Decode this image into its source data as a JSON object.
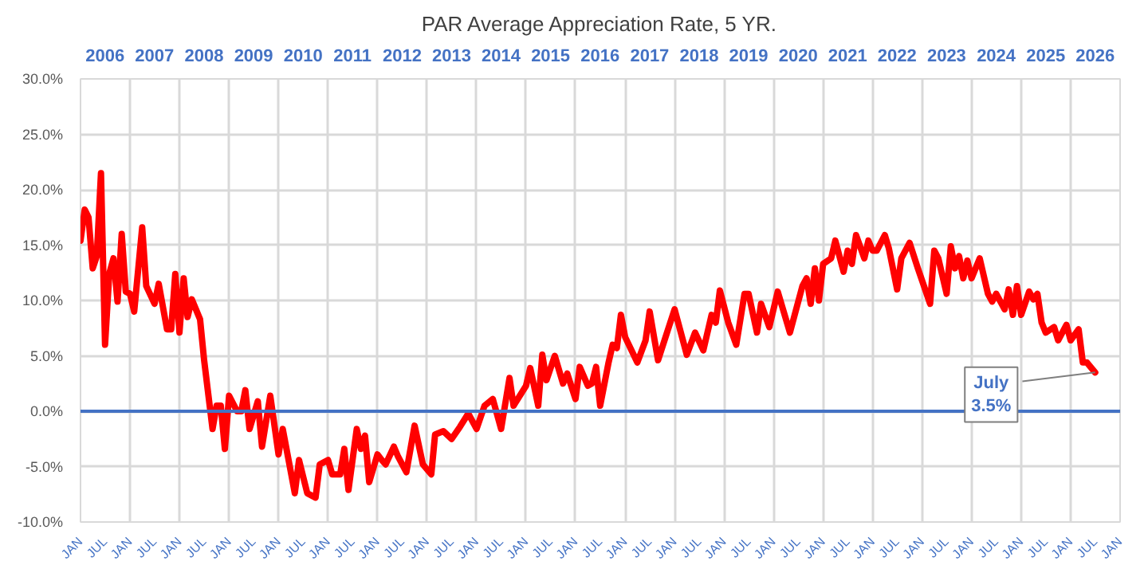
{
  "chart_data": {
    "type": "line",
    "title": "PAR Average Appreciation Rate, 5 YR.",
    "x": [
      "2006-01",
      "2006-02",
      "2006-03",
      "2006-04",
      "2006-05",
      "2006-06",
      "2006-07",
      "2006-08",
      "2006-09",
      "2006-10",
      "2006-11",
      "2006-12",
      "2007-01",
      "2007-02",
      "2007-04",
      "2007-05",
      "2007-07",
      "2007-08",
      "2007-10",
      "2007-11",
      "2007-12",
      "2008-01",
      "2008-02",
      "2008-03",
      "2008-04",
      "2008-06",
      "2008-07",
      "2008-09",
      "2008-10",
      "2008-11",
      "2008-12",
      "2009-01",
      "2009-03",
      "2009-04",
      "2009-05",
      "2009-06",
      "2009-08",
      "2009-09",
      "2009-11",
      "2010-01",
      "2010-02",
      "2010-05",
      "2010-06",
      "2010-08",
      "2010-10",
      "2010-11",
      "2011-01",
      "2011-02",
      "2011-04",
      "2011-05",
      "2011-06",
      "2011-08",
      "2011-09",
      "2011-10",
      "2011-11",
      "2012-01",
      "2012-02",
      "2012-03",
      "2012-05",
      "2012-06",
      "2012-08",
      "2012-10",
      "2012-12",
      "2013-02",
      "2013-03",
      "2013-05",
      "2013-07",
      "2013-09",
      "2013-11",
      "2014-01",
      "2014-03",
      "2014-05",
      "2014-07",
      "2014-09",
      "2014-10",
      "2015-01",
      "2015-02",
      "2015-04",
      "2015-05",
      "2015-06",
      "2015-08",
      "2015-10",
      "2015-11",
      "2016-01",
      "2016-02",
      "2016-04",
      "2016-05",
      "2016-06",
      "2016-07",
      "2016-09",
      "2016-10",
      "2016-11",
      "2016-12",
      "2017-01",
      "2017-04",
      "2017-06",
      "2017-07",
      "2017-09",
      "2017-11",
      "2018-01",
      "2018-04",
      "2018-06",
      "2018-08",
      "2018-10",
      "2018-11",
      "2018-12",
      "2019-02",
      "2019-04",
      "2019-06",
      "2019-07",
      "2019-09",
      "2019-10",
      "2019-12",
      "2020-02",
      "2020-05",
      "2020-08",
      "2020-09",
      "2020-10",
      "2020-11",
      "2020-12",
      "2021-01",
      "2021-03",
      "2021-04",
      "2021-06",
      "2021-07",
      "2021-08",
      "2021-09",
      "2021-11",
      "2021-12",
      "2022-01",
      "2022-02",
      "2022-04",
      "2022-05",
      "2022-07",
      "2022-08",
      "2022-10",
      "2022-12",
      "2023-03",
      "2023-04",
      "2023-05",
      "2023-07",
      "2023-08",
      "2023-09",
      "2023-10",
      "2023-11",
      "2023-12",
      "2024-01",
      "2024-03",
      "2024-05",
      "2024-06",
      "2024-07",
      "2024-09",
      "2024-10",
      "2024-11",
      "2024-12",
      "2025-01",
      "2025-03",
      "2025-04",
      "2025-05",
      "2025-06",
      "2025-07",
      "2025-09",
      "2025-10",
      "2025-12",
      "2026-01",
      "2026-03",
      "2026-04",
      "2026-05",
      "2026-07"
    ],
    "series": [
      {
        "color": "#ff0000",
        "values": [
          15.4,
          18.2,
          17.5,
          12.9,
          14.0,
          21.5,
          6.0,
          12.4,
          13.8,
          9.9,
          16.0,
          10.8,
          10.6,
          9.0,
          16.6,
          11.3,
          9.7,
          11.5,
          7.4,
          7.4,
          12.4,
          7.1,
          12.0,
          8.5,
          10.1,
          8.3,
          4.6,
          -1.6,
          0.5,
          0.5,
          -3.4,
          1.4,
          0.0,
          0.0,
          1.9,
          -1.6,
          0.9,
          -3.2,
          1.4,
          -3.9,
          -1.6,
          -7.4,
          -4.4,
          -7.4,
          -7.8,
          -4.8,
          -4.4,
          -5.7,
          -5.7,
          -3.4,
          -7.1,
          -1.6,
          -3.4,
          -2.2,
          -6.4,
          -3.9,
          -4.4,
          -4.8,
          -3.2,
          -4.1,
          -5.5,
          -1.3,
          -4.8,
          -5.7,
          -2.1,
          -1.8,
          -2.5,
          -1.4,
          -0.2,
          -1.6,
          0.5,
          1.1,
          -1.6,
          3.0,
          0.5,
          2.3,
          3.9,
          0.5,
          5.1,
          2.8,
          5.0,
          2.5,
          3.4,
          1.1,
          4.0,
          2.3,
          2.5,
          4.0,
          0.5,
          4.4,
          6.0,
          5.7,
          8.7,
          6.7,
          4.4,
          6.4,
          9.0,
          4.6,
          6.9,
          9.2,
          5.1,
          7.1,
          5.5,
          8.7,
          8.0,
          10.9,
          8.0,
          6.0,
          10.6,
          10.6,
          7.1,
          9.7,
          7.6,
          10.8,
          7.1,
          11.3,
          12.0,
          9.7,
          12.9,
          10.0,
          13.3,
          13.8,
          15.4,
          12.6,
          14.5,
          13.3,
          15.9,
          13.8,
          15.4,
          14.5,
          14.5,
          15.9,
          14.7,
          11.0,
          13.8,
          15.2,
          12.9,
          9.7,
          14.5,
          13.8,
          10.6,
          14.9,
          12.9,
          14.0,
          12.0,
          13.6,
          12.0,
          13.8,
          10.6,
          9.9,
          10.6,
          9.2,
          11.0,
          8.7,
          11.3,
          8.7,
          10.8,
          10.1,
          10.6,
          8.0,
          7.1,
          7.6,
          6.4,
          7.8,
          6.4,
          7.4,
          4.4,
          4.4,
          3.5
        ]
      }
    ],
    "xlim": [
      "2006-01",
      "2027-01"
    ],
    "xticks": [
      {
        "value": "2006-01",
        "label": "JAN"
      },
      {
        "value": "2006-07",
        "label": "JUL"
      },
      {
        "value": "2007-01",
        "label": "JAN"
      },
      {
        "value": "2007-07",
        "label": "JUL"
      },
      {
        "value": "2008-01",
        "label": "JAN"
      },
      {
        "value": "2008-07",
        "label": "JUL"
      },
      {
        "value": "2009-01",
        "label": "JAN"
      },
      {
        "value": "2009-07",
        "label": "JUL"
      },
      {
        "value": "2010-01",
        "label": "JAN"
      },
      {
        "value": "2010-07",
        "label": "JUL"
      },
      {
        "value": "2011-01",
        "label": "JAN"
      },
      {
        "value": "2011-07",
        "label": "JUL"
      },
      {
        "value": "2012-01",
        "label": "JAN"
      },
      {
        "value": "2012-07",
        "label": "JUL"
      },
      {
        "value": "2013-01",
        "label": "JAN"
      },
      {
        "value": "2013-07",
        "label": "JUL"
      },
      {
        "value": "2014-01",
        "label": "JAN"
      },
      {
        "value": "2014-07",
        "label": "JUL"
      },
      {
        "value": "2015-01",
        "label": "JAN"
      },
      {
        "value": "2015-07",
        "label": "JUL"
      },
      {
        "value": "2016-01",
        "label": "JAN"
      },
      {
        "value": "2016-07",
        "label": "JUL"
      },
      {
        "value": "2017-01",
        "label": "JAN"
      },
      {
        "value": "2017-07",
        "label": "JUL"
      },
      {
        "value": "2018-01",
        "label": "JAN"
      },
      {
        "value": "2018-07",
        "label": "JUL"
      },
      {
        "value": "2019-01",
        "label": "JAN"
      },
      {
        "value": "2019-07",
        "label": "JUL"
      },
      {
        "value": "2020-01",
        "label": "JAN"
      },
      {
        "value": "2020-07",
        "label": "JUL"
      },
      {
        "value": "2021-01",
        "label": "JAN"
      },
      {
        "value": "2021-07",
        "label": "JUL"
      },
      {
        "value": "2022-01",
        "label": "JAN"
      },
      {
        "value": "2022-07",
        "label": "JUL"
      },
      {
        "value": "2023-01",
        "label": "JAN"
      },
      {
        "value": "2023-07",
        "label": "JUL"
      },
      {
        "value": "2024-01",
        "label": "JAN"
      },
      {
        "value": "2024-07",
        "label": "JUL"
      },
      {
        "value": "2025-01",
        "label": "JAN"
      },
      {
        "value": "2025-07",
        "label": "JUL"
      },
      {
        "value": "2026-01",
        "label": "JAN"
      },
      {
        "value": "2026-07",
        "label": "JUL"
      },
      {
        "value": "2027-01",
        "label": "JAN"
      }
    ],
    "x2lim": [
      "2006-01",
      "2027-01"
    ],
    "x2ticks": [
      {
        "value": "2006-07",
        "label": "2006"
      },
      {
        "value": "2007-07",
        "label": "2007"
      },
      {
        "value": "2008-07",
        "label": "2008"
      },
      {
        "value": "2009-07",
        "label": "2009"
      },
      {
        "value": "2010-07",
        "label": "2010"
      },
      {
        "value": "2011-07",
        "label": "2011"
      },
      {
        "value": "2012-07",
        "label": "2012"
      },
      {
        "value": "2013-07",
        "label": "2013"
      },
      {
        "value": "2014-07",
        "label": "2014"
      },
      {
        "value": "2015-07",
        "label": "2015"
      },
      {
        "value": "2016-07",
        "label": "2016"
      },
      {
        "value": "2017-07",
        "label": "2017"
      },
      {
        "value": "2018-07",
        "label": "2018"
      },
      {
        "value": "2019-07",
        "label": "2019"
      },
      {
        "value": "2020-07",
        "label": "2020"
      },
      {
        "value": "2021-07",
        "label": "2021"
      },
      {
        "value": "2022-07",
        "label": "2022"
      },
      {
        "value": "2023-07",
        "label": "2023"
      },
      {
        "value": "2024-07",
        "label": "2024"
      },
      {
        "value": "2025-07",
        "label": "2025"
      },
      {
        "value": "2026-07",
        "label": "2026"
      }
    ],
    "ylim": [
      -10,
      30
    ],
    "yticks": [
      {
        "value": -10,
        "label": "-10.0%"
      },
      {
        "value": -5,
        "label": "-5.0%"
      },
      {
        "value": 0,
        "label": "0.0%"
      },
      {
        "value": 5,
        "label": "5.0%"
      },
      {
        "value": 10,
        "label": "10.0%"
      },
      {
        "value": 15,
        "label": "15.0%"
      },
      {
        "value": 20,
        "label": "20.0%"
      },
      {
        "value": 25,
        "label": "25.0%"
      },
      {
        "value": 30,
        "label": "30.0%"
      }
    ],
    "ref_lines": [
      {
        "axis": "y",
        "value": 0,
        "label": null,
        "color": "#4472c4"
      }
    ],
    "annotations": [
      {
        "text": "July\n3.5%",
        "x": "2026-07",
        "y": 3.5
      }
    ],
    "grid": true,
    "marker": "none",
    "line_style": "solid"
  }
}
